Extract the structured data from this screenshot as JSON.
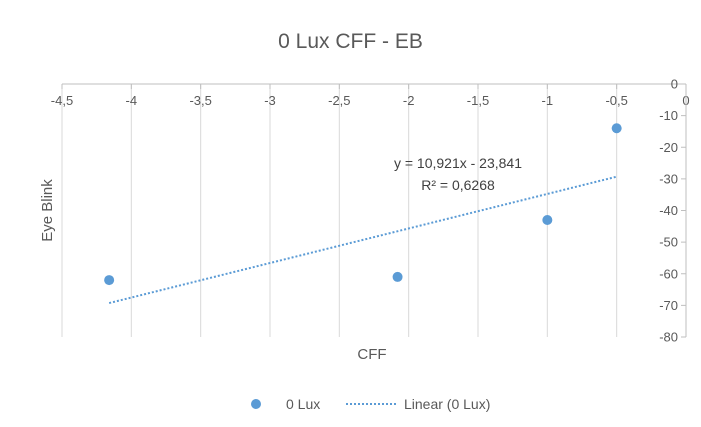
{
  "chart_data": {
    "type": "scatter",
    "title": "0 Lux CFF - EB",
    "xlabel": "CFF",
    "ylabel": "Eye Blink",
    "xlim": [
      -4.5,
      0
    ],
    "ylim": [
      -80,
      0
    ],
    "x_ticks": [
      -4.5,
      -4,
      -3.5,
      -3,
      -2.5,
      -2,
      -1.5,
      -1,
      -0.5,
      0
    ],
    "x_tick_labels": [
      "-4,5",
      "-4",
      "-3,5",
      "-3",
      "-2,5",
      "-2",
      "-1,5",
      "-1",
      "-0,5",
      "0"
    ],
    "y_ticks": [
      0,
      -10,
      -20,
      -30,
      -40,
      -50,
      -60,
      -70,
      -80
    ],
    "y_tick_labels": [
      "0",
      "-10",
      "-20",
      "-30",
      "-40",
      "-50",
      "-60",
      "-70",
      "-80"
    ],
    "x_axis_position": "top",
    "y_axis_position": "right",
    "grid": {
      "vertical": true,
      "horizontal": false
    },
    "series": [
      {
        "name": "0 Lux",
        "color": "#5b9bd5",
        "marker": "circle",
        "points": [
          {
            "x": -4.16,
            "y": -62
          },
          {
            "x": -2.08,
            "y": -61
          },
          {
            "x": -1.0,
            "y": -43
          },
          {
            "x": -0.5,
            "y": -14
          }
        ]
      }
    ],
    "trendline": {
      "name": "Linear (0 Lux)",
      "type": "linear",
      "slope": 10.921,
      "intercept": -23.841,
      "x_range": [
        -4.16,
        -0.5
      ],
      "color": "#5b9bd5",
      "style": "dotted",
      "equation_label": "y = 10,921x - 23,841",
      "r2_label": "R² = 0,6268"
    },
    "legend": {
      "placement": "bottom",
      "entries": [
        "0 Lux",
        "Linear (0 Lux)"
      ]
    }
  }
}
